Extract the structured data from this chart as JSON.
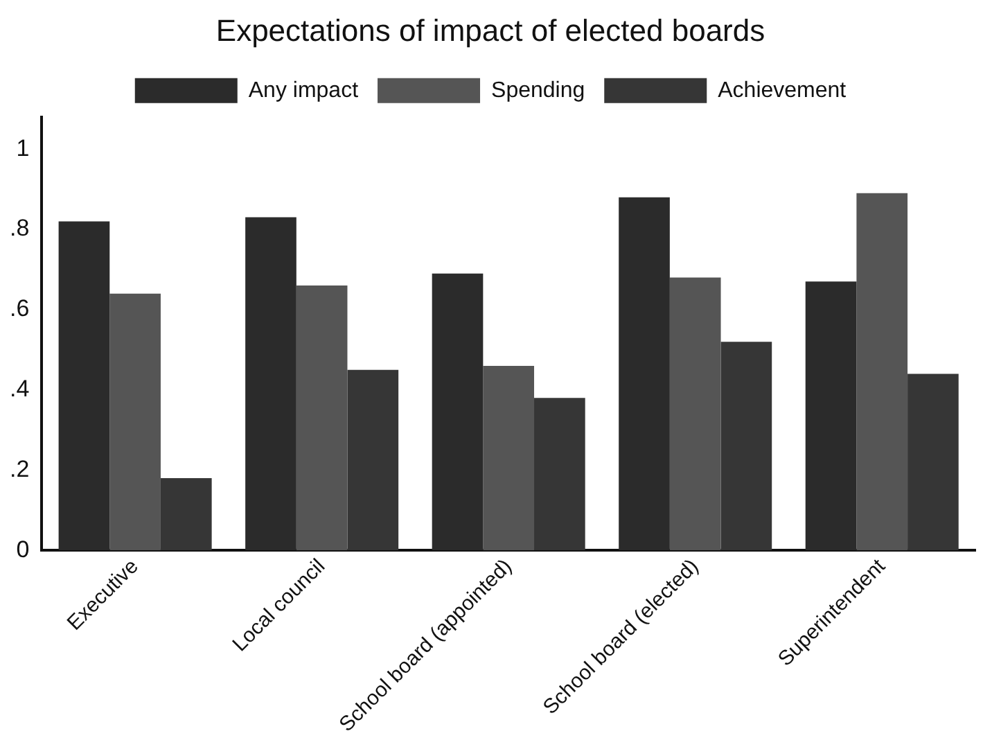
{
  "chart_data": {
    "type": "bar",
    "title": "Expectations of impact of elected boards",
    "categories": [
      "Executive",
      "Local council",
      "School board (appointed)",
      "School board (elected)",
      "Superintendent"
    ],
    "series": [
      {
        "name": "Any impact",
        "color": "#2b2b2b",
        "values": [
          0.82,
          0.83,
          0.69,
          0.88,
          0.67
        ]
      },
      {
        "name": "Spending",
        "color": "#555555",
        "values": [
          0.64,
          0.66,
          0.46,
          0.68,
          0.89
        ]
      },
      {
        "name": "Achievement",
        "color": "#363636",
        "values": [
          0.18,
          0.45,
          0.38,
          0.52,
          0.44
        ]
      }
    ],
    "ylim": [
      0,
      1.08
    ],
    "yticks": [
      {
        "value": 0,
        "label": "0"
      },
      {
        "value": 0.2,
        "label": ".2"
      },
      {
        "value": 0.4,
        "label": ".4"
      },
      {
        "value": 0.6,
        "label": ".6"
      },
      {
        "value": 0.8,
        "label": ".8"
      },
      {
        "value": 1,
        "label": "1"
      }
    ],
    "grid": false,
    "legend": "top"
  }
}
